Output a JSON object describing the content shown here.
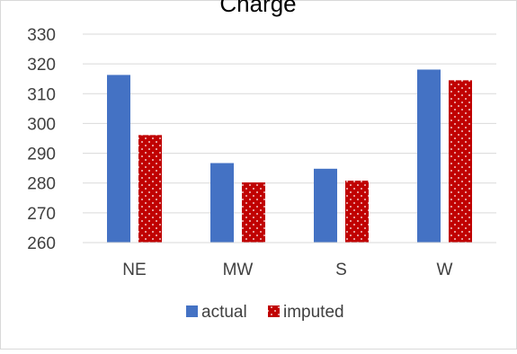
{
  "chart_data": {
    "type": "bar",
    "title": "Charge",
    "categories": [
      "NE",
      "MW",
      "S",
      "W"
    ],
    "series": [
      {
        "name": "actual",
        "values": [
          316.3,
          286.7,
          284.8,
          318.1
        ],
        "color": "#4472C4",
        "pattern": "solid"
      },
      {
        "name": "imputed",
        "values": [
          296.1,
          280.2,
          280.8,
          314.5
        ],
        "color": "#C00000",
        "pattern": "dots"
      }
    ],
    "yticks": [
      260,
      270,
      280,
      290,
      300,
      310,
      320,
      330
    ],
    "ylim": [
      260,
      330
    ],
    "grid": true,
    "legend_position": "bottom"
  }
}
